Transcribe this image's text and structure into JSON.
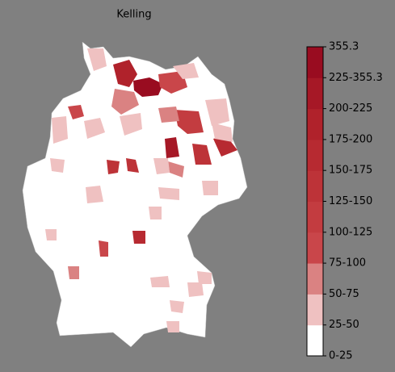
{
  "title": "Kelling",
  "colorbar": {
    "labels": [
      "0-25",
      "25-50",
      "50-75",
      "75-100",
      "100-125",
      "125-150",
      "150-175",
      "175-200",
      "200-225",
      "225-355.3",
      "355.3"
    ],
    "colors": [
      "#ffffff",
      "#efc1c1",
      "#da8282",
      "#c9464a",
      "#c33c40",
      "#bd3338",
      "#b72a31",
      "#b0222b",
      "#a61826",
      "#990c20"
    ]
  }
}
